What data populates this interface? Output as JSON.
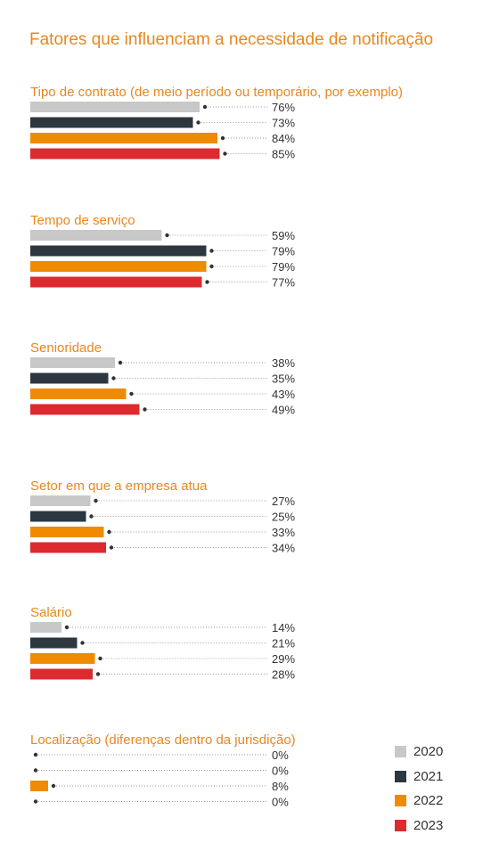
{
  "colors": {
    "title": "#e8871e",
    "category": "#e8871e",
    "label": "#333333",
    "dots": "#999999",
    "series": [
      "#c8c8c8",
      "#2d3740",
      "#f08a00",
      "#dc2a2f"
    ]
  },
  "chart_data": {
    "type": "bar",
    "orientation": "horizontal",
    "title": "Fatores que influenciam a necessidade de notificação",
    "value_suffix": "%",
    "xlim": [
      0,
      100
    ],
    "legend_position": "bottom-right",
    "series_names": [
      "2020",
      "2021",
      "2022",
      "2023"
    ],
    "categories": [
      {
        "name": "Tipo de contrato (de meio período ou temporário, por exemplo)",
        "values": [
          76,
          73,
          84,
          85
        ],
        "labels": [
          "76%",
          "73%",
          "84%",
          "85%"
        ]
      },
      {
        "name": "Tempo de serviço",
        "values": [
          59,
          79,
          79,
          77
        ],
        "labels": [
          "59%",
          "79%",
          "79%",
          "77%"
        ]
      },
      {
        "name": "Senioridade",
        "values": [
          38,
          35,
          43,
          49
        ],
        "labels": [
          "38%",
          "35%",
          "43%",
          "49%"
        ]
      },
      {
        "name": "Setor em que a empresa atua",
        "values": [
          27,
          25,
          33,
          34
        ],
        "labels": [
          "27%",
          "25%",
          "33%",
          "34%"
        ]
      },
      {
        "name": "Salário",
        "values": [
          14,
          21,
          29,
          28
        ],
        "labels": [
          "14%",
          "21%",
          "29%",
          "28%"
        ]
      },
      {
        "name": "Localização (diferenças dentro da jurisdição)",
        "values": [
          0,
          0,
          8,
          0
        ],
        "labels": [
          "0%",
          "0%",
          "8%",
          "0%"
        ]
      }
    ]
  }
}
